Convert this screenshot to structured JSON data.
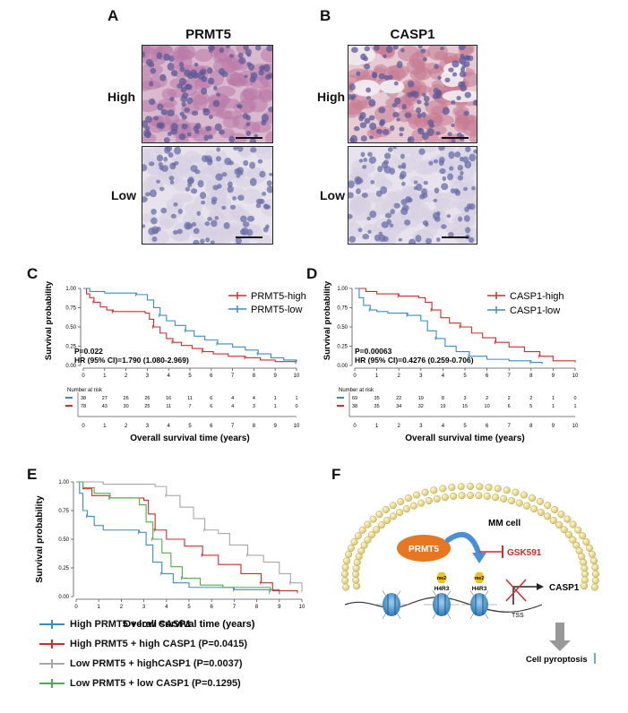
{
  "colors": {
    "red": "#d42a2a",
    "blue": "#3a8cc4",
    "gray": "#a8a8a8",
    "green": "#4cae4c",
    "orange": "#e87722",
    "ihc_bg": "#d6c4d8"
  },
  "panels": {
    "A": {
      "letter": "A",
      "title": "PRMT5",
      "row_labels": [
        "High",
        "Low"
      ]
    },
    "B": {
      "letter": "B",
      "title": "CASP1",
      "row_labels": [
        "High",
        "Low"
      ]
    },
    "C": {
      "letter": "C",
      "ylabel": "Survival probability",
      "xlabel": "Overall survival time (years)",
      "legend": [
        "PRMT5-high",
        "PRMT5-low"
      ],
      "p_text": "P=0.022",
      "hr_text": "HR (95%  CI)=1.790 (1.080-2.969)",
      "risk_title": "Number at risk",
      "risk_rows": [
        [
          "38",
          "27",
          "26",
          "26",
          "16",
          "11",
          "6",
          "4",
          "4",
          "1",
          "1"
        ],
        [
          "78",
          "43",
          "30",
          "25",
          "11",
          "7",
          "6",
          "4",
          "3",
          "1",
          "0"
        ]
      ]
    },
    "D": {
      "letter": "D",
      "ylabel": "Survival probability",
      "xlabel": "Overall survival time (years)",
      "legend": [
        "CASP1-high",
        "CASP1-low"
      ],
      "p_text": "P=0.00063",
      "hr_text": "HR (95%  CI)=0.4276 (0.259-0.706)",
      "risk_title": "Number at risk",
      "risk_rows": [
        [
          "69",
          "35",
          "22",
          "19",
          "8",
          "3",
          "2",
          "2",
          "2",
          "1",
          "0"
        ],
        [
          "38",
          "35",
          "34",
          "32",
          "19",
          "15",
          "10",
          "6",
          "5",
          "1",
          "1"
        ]
      ]
    },
    "E": {
      "letter": "E",
      "ylabel": "Survival probability",
      "xlabel": "Overall survival time (years)",
      "legend": [
        "High PRMT5 + low CASP1",
        "High PRMT5 + high CASP1  (P=0.0415)",
        "Low PRMT5 + highCASP1  (P=0.0037)",
        "Low PRMT5 + low CASP1  (P=0.1295)"
      ]
    },
    "F": {
      "letter": "F",
      "cell_label": "MM cell",
      "enzyme": "PRMT5",
      "inhibitor": "GSK591",
      "mark": "me2",
      "histone": "H4R3",
      "tss": "TSS",
      "gene": "CASP1",
      "outcome": "Cell pyroptosis"
    }
  },
  "chart_data": [
    {
      "type": "line",
      "panel": "C",
      "ylabel": "Survival probability",
      "xlabel": "Overall survival time (years)",
      "xlim": [
        0,
        10
      ],
      "ylim": [
        0,
        1
      ],
      "x_ticks": [
        0,
        1,
        2,
        3,
        4,
        5,
        6,
        7,
        8,
        9,
        10
      ],
      "y_ticks": [
        "0.00",
        "0.25",
        "0.50",
        "0.75",
        "1.00"
      ],
      "series": [
        {
          "name": "PRMT5-high",
          "color": "#d42a2a",
          "steps": [
            [
              0,
              1.0
            ],
            [
              0.15,
              0.93
            ],
            [
              0.3,
              0.88
            ],
            [
              0.5,
              0.82
            ],
            [
              0.8,
              0.76
            ],
            [
              1.1,
              0.72
            ],
            [
              1.4,
              0.7
            ],
            [
              2.9,
              0.68
            ],
            [
              3.1,
              0.6
            ],
            [
              3.3,
              0.5
            ],
            [
              3.6,
              0.42
            ],
            [
              3.9,
              0.35
            ],
            [
              4.2,
              0.3
            ],
            [
              4.6,
              0.26
            ],
            [
              5.1,
              0.22
            ],
            [
              5.6,
              0.18
            ],
            [
              6.1,
              0.15
            ],
            [
              6.8,
              0.12
            ],
            [
              7.6,
              0.1
            ],
            [
              8.3,
              0.07
            ],
            [
              9.0,
              0.05
            ],
            [
              10.0,
              0.05
            ]
          ]
        },
        {
          "name": "PRMT5-low",
          "color": "#3a8cc4",
          "steps": [
            [
              0,
              1.0
            ],
            [
              0.3,
              0.96
            ],
            [
              1.0,
              0.94
            ],
            [
              2.5,
              0.92
            ],
            [
              3.0,
              0.85
            ],
            [
              3.3,
              0.75
            ],
            [
              3.6,
              0.65
            ],
            [
              3.9,
              0.58
            ],
            [
              4.3,
              0.52
            ],
            [
              4.8,
              0.45
            ],
            [
              5.2,
              0.38
            ],
            [
              5.7,
              0.33
            ],
            [
              6.3,
              0.28
            ],
            [
              7.0,
              0.24
            ],
            [
              7.6,
              0.2
            ],
            [
              8.2,
              0.15
            ],
            [
              8.8,
              0.1
            ],
            [
              9.4,
              0.07
            ],
            [
              10.0,
              0.04
            ]
          ]
        }
      ]
    },
    {
      "type": "line",
      "panel": "D",
      "ylabel": "Survival probability",
      "xlabel": "Overall survival time (years)",
      "xlim": [
        0,
        10
      ],
      "ylim": [
        0,
        1
      ],
      "x_ticks": [
        0,
        1,
        2,
        3,
        4,
        5,
        6,
        7,
        8,
        9,
        10
      ],
      "y_ticks": [
        "0.00",
        "0.25",
        "0.50",
        "0.75",
        "1.00"
      ],
      "series": [
        {
          "name": "CASP1-high",
          "color": "#d42a2a",
          "steps": [
            [
              0,
              1.0
            ],
            [
              0.5,
              0.96
            ],
            [
              1.0,
              0.93
            ],
            [
              2.0,
              0.9
            ],
            [
              2.9,
              0.88
            ],
            [
              3.2,
              0.82
            ],
            [
              3.5,
              0.72
            ],
            [
              3.9,
              0.62
            ],
            [
              4.3,
              0.55
            ],
            [
              4.8,
              0.5
            ],
            [
              5.3,
              0.42
            ],
            [
              5.8,
              0.36
            ],
            [
              6.4,
              0.3
            ],
            [
              7.0,
              0.24
            ],
            [
              7.7,
              0.18
            ],
            [
              8.4,
              0.12
            ],
            [
              9.0,
              0.06
            ],
            [
              10.0,
              0.04
            ]
          ]
        },
        {
          "name": "CASP1-low",
          "color": "#3a8cc4",
          "steps": [
            [
              0,
              1.0
            ],
            [
              0.2,
              0.88
            ],
            [
              0.4,
              0.78
            ],
            [
              0.7,
              0.72
            ],
            [
              1.0,
              0.7
            ],
            [
              1.5,
              0.68
            ],
            [
              2.4,
              0.65
            ],
            [
              3.0,
              0.58
            ],
            [
              3.3,
              0.45
            ],
            [
              3.7,
              0.35
            ],
            [
              4.1,
              0.25
            ],
            [
              4.6,
              0.18
            ],
            [
              5.2,
              0.12
            ],
            [
              6.0,
              0.08
            ],
            [
              7.0,
              0.06
            ],
            [
              8.0,
              0.04
            ],
            [
              8.5,
              0.02
            ]
          ]
        }
      ]
    },
    {
      "type": "line",
      "panel": "E",
      "ylabel": "Survival probability",
      "xlabel": "Overall survival time (years)",
      "xlim": [
        0,
        10
      ],
      "ylim": [
        0,
        1
      ],
      "x_ticks": [
        0,
        1,
        2,
        3,
        4,
        5,
        6,
        7,
        8,
        9,
        10
      ],
      "y_ticks": [
        "0.00",
        "0.25",
        "0.50",
        "0.75",
        "1.00"
      ],
      "series": [
        {
          "name": "High PRMT5 + low CASP1",
          "color": "#3a8cc4",
          "steps": [
            [
              0,
              1.0
            ],
            [
              0.15,
              0.9
            ],
            [
              0.3,
              0.75
            ],
            [
              0.5,
              0.7
            ],
            [
              0.8,
              0.62
            ],
            [
              1.2,
              0.58
            ],
            [
              2.8,
              0.56
            ],
            [
              3.1,
              0.45
            ],
            [
              3.4,
              0.3
            ],
            [
              3.8,
              0.2
            ],
            [
              4.3,
              0.12
            ],
            [
              5.0,
              0.08
            ],
            [
              7.0,
              0.06
            ],
            [
              9.0,
              0.02
            ]
          ]
        },
        {
          "name": "High PRMT5 + high CASP1  (P=0.0415)",
          "color": "#d42a2a",
          "steps": [
            [
              0,
              1.0
            ],
            [
              0.3,
              0.94
            ],
            [
              0.7,
              0.88
            ],
            [
              1.5,
              0.86
            ],
            [
              3.0,
              0.84
            ],
            [
              3.2,
              0.72
            ],
            [
              3.5,
              0.58
            ],
            [
              4.0,
              0.5
            ],
            [
              4.8,
              0.44
            ],
            [
              5.6,
              0.36
            ],
            [
              6.3,
              0.28
            ],
            [
              7.3,
              0.2
            ],
            [
              8.2,
              0.12
            ],
            [
              8.7,
              0.05
            ],
            [
              9.8,
              0.03
            ]
          ]
        },
        {
          "name": "Low PRMT5 + highCASP1  (P=0.0037)",
          "color": "#a8a8a8",
          "steps": [
            [
              0,
              1.0
            ],
            [
              1.2,
              0.98
            ],
            [
              3.5,
              0.96
            ],
            [
              4.0,
              0.88
            ],
            [
              4.6,
              0.78
            ],
            [
              5.2,
              0.68
            ],
            [
              5.7,
              0.58
            ],
            [
              6.3,
              0.55
            ],
            [
              6.8,
              0.45
            ],
            [
              7.6,
              0.36
            ],
            [
              8.3,
              0.3
            ],
            [
              9.0,
              0.2
            ],
            [
              9.5,
              0.12
            ],
            [
              10.0,
              0.04
            ]
          ]
        },
        {
          "name": "Low PRMT5 + low CASP1  (P=0.1295)",
          "color": "#4cae4c",
          "steps": [
            [
              0,
              1.0
            ],
            [
              0.3,
              0.95
            ],
            [
              0.8,
              0.9
            ],
            [
              1.5,
              0.86
            ],
            [
              2.8,
              0.8
            ],
            [
              3.1,
              0.65
            ],
            [
              3.4,
              0.5
            ],
            [
              3.8,
              0.38
            ],
            [
              4.2,
              0.26
            ],
            [
              4.7,
              0.16
            ],
            [
              5.5,
              0.1
            ],
            [
              6.5,
              0.08
            ],
            [
              8.6,
              0.04
            ]
          ]
        }
      ]
    }
  ]
}
